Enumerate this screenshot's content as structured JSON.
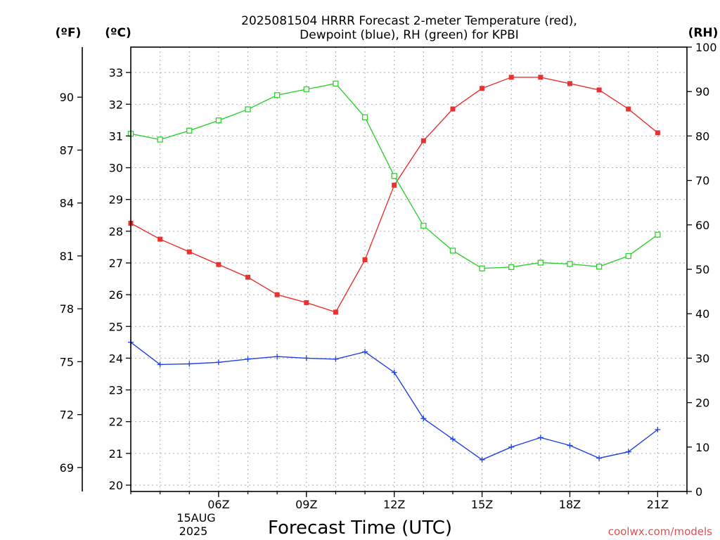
{
  "chart_data": {
    "type": "line",
    "title": "2025081504 HRRR Forecast 2-meter Temperature (red),",
    "subtitle": "Dewpoint (blue), RH (green) for KPBI",
    "xlabel": "Forecast Time (UTC)",
    "credit": "coolwx.com/models",
    "units": {
      "fahrenheit": "(ºF)",
      "celsius": "(ºC)",
      "rh": "(RH)"
    },
    "x_hours": [
      3,
      4,
      5,
      6,
      7,
      8,
      9,
      10,
      11,
      12,
      13,
      14,
      15,
      16,
      17,
      18,
      19,
      20,
      21,
      22
    ],
    "x_ticks": [
      {
        "hour": 6,
        "label": "06Z"
      },
      {
        "hour": 9,
        "label": "09Z"
      },
      {
        "hour": 12,
        "label": "12Z"
      },
      {
        "hour": 15,
        "label": "15Z"
      },
      {
        "hour": 18,
        "label": "18Z"
      },
      {
        "hour": 21,
        "label": "21Z"
      }
    ],
    "date_label": [
      "15AUG",
      "2025"
    ],
    "xlim": [
      3,
      22
    ],
    "celsius_range": [
      19.8,
      33.8
    ],
    "celsius_ticks": [
      20,
      21,
      22,
      23,
      24,
      25,
      26,
      27,
      28,
      29,
      30,
      31,
      32,
      33
    ],
    "fahrenheit_ticks": [
      69,
      72,
      75,
      78,
      81,
      84,
      87,
      90
    ],
    "rh_range": [
      0,
      100
    ],
    "rh_ticks": [
      0,
      10,
      20,
      30,
      40,
      50,
      60,
      70,
      80,
      90,
      100
    ],
    "grid": true,
    "series": [
      {
        "axis": "celsius",
        "color": "#e83232",
        "marker": "filled-square",
        "values": [
          28.25,
          27.75,
          27.35,
          26.95,
          26.55,
          26.0,
          25.75,
          25.45,
          27.1,
          29.45,
          30.85,
          31.85,
          32.5,
          32.85,
          32.85,
          32.65,
          32.45,
          31.85,
          31.1
        ]
      },
      {
        "axis": "celsius",
        "color": "#2040e8",
        "marker": "plus",
        "values": [
          24.5,
          23.8,
          23.82,
          23.87,
          23.97,
          24.05,
          24.0,
          23.97,
          24.2,
          23.55,
          22.1,
          21.45,
          20.8,
          21.2,
          21.5,
          21.25,
          20.85,
          21.05,
          21.75
        ]
      },
      {
        "axis": "rh",
        "color": "#30d030",
        "marker": "open-square",
        "values": [
          80.5,
          79.2,
          81.2,
          83.5,
          86.0,
          89.2,
          90.5,
          91.8,
          84.2,
          71.0,
          59.8,
          54.2,
          50.2,
          50.5,
          51.5,
          51.2,
          50.6,
          53.0,
          57.8
        ]
      }
    ]
  }
}
